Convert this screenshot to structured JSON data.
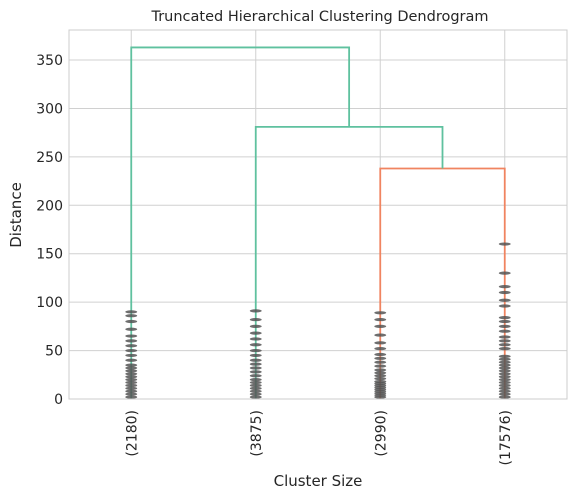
{
  "chart_data": {
    "type": "dendrogram",
    "title": "Truncated Hierarchical Clustering Dendrogram",
    "xlabel": "Cluster Size",
    "ylabel": "Distance",
    "ylim": [
      0,
      381
    ],
    "yticks": [
      0,
      50,
      100,
      150,
      200,
      250,
      300,
      350
    ],
    "grid": true,
    "leaves": [
      {
        "label": "(2180)",
        "merge_markers": [
          2,
          5,
          8,
          11,
          14,
          17,
          20,
          23,
          26,
          29,
          32,
          35,
          40,
          45,
          50,
          55,
          60,
          65,
          72,
          80,
          86,
          90
        ]
      },
      {
        "label": "(3875)",
        "merge_markers": [
          2,
          5,
          8,
          11,
          14,
          17,
          20,
          24,
          28,
          32,
          36,
          40,
          45,
          50,
          56,
          62,
          68,
          75,
          82,
          91
        ]
      },
      {
        "label": "(2990)",
        "merge_markers": [
          2,
          4,
          6,
          8,
          10,
          12,
          14,
          16,
          18,
          21,
          24,
          27,
          30,
          34,
          38,
          42,
          46,
          52,
          58,
          66,
          75,
          82,
          89
        ]
      },
      {
        "label": "(17576)",
        "merge_markers": [
          2,
          5,
          8,
          11,
          14,
          17,
          20,
          23,
          26,
          29,
          32,
          35,
          38,
          41,
          44,
          52,
          56,
          60,
          64,
          70,
          75,
          80,
          84,
          96,
          102,
          110,
          116,
          130,
          160
        ]
      }
    ],
    "links": [
      {
        "left": "leaf:2",
        "right": "leaf:3",
        "height": 238,
        "color": "#f08460"
      },
      {
        "left": "leaf:1",
        "right": "link:0",
        "height": 281,
        "color": "#5fc19f"
      },
      {
        "left": "leaf:0",
        "right": "link:1",
        "height": 363,
        "color": "#5fc19f"
      }
    ],
    "colors": {
      "cluster_a": "#5fc19f",
      "cluster_b": "#f08460",
      "marker": "#555555",
      "grid": "#d0d0d0",
      "frame": "#cccccc"
    }
  }
}
